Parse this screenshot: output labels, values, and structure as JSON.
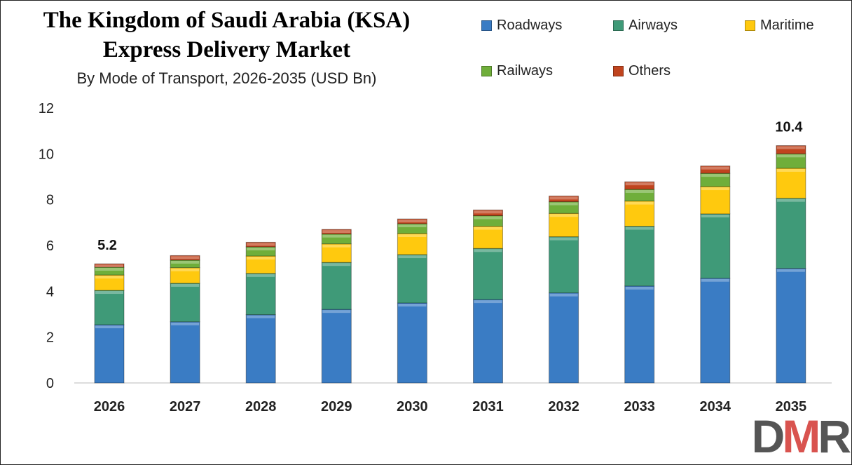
{
  "chart_data": {
    "type": "bar",
    "stacked": true,
    "title": "The Kingdom of Saudi Arabia (KSA) Express Delivery Market",
    "title_lines": [
      "The Kingdom of Saudi Arabia (KSA)",
      "Express Delivery Market"
    ],
    "subtitle": "By Mode of Transport, 2026-2035 (USD Bn)",
    "xlabel": "",
    "ylabel": "",
    "ylim": [
      0,
      12
    ],
    "yticks": [
      0,
      2,
      4,
      6,
      8,
      10,
      12
    ],
    "grid": false,
    "legend_position": "top-right",
    "categories": [
      "2026",
      "2027",
      "2028",
      "2029",
      "2030",
      "2031",
      "2032",
      "2033",
      "2034",
      "2035"
    ],
    "series": [
      {
        "name": "Roadways",
        "color": "#3a7cc4",
        "values": [
          2.54,
          2.67,
          2.98,
          3.21,
          3.49,
          3.64,
          3.93,
          4.23,
          4.57,
          5.0
        ]
      },
      {
        "name": "Airways",
        "color": "#3f9a78",
        "values": [
          1.5,
          1.68,
          1.8,
          2.05,
          2.11,
          2.23,
          2.45,
          2.61,
          2.81,
          3.06
        ]
      },
      {
        "name": "Maritime",
        "color": "#ffc90e",
        "values": [
          0.67,
          0.68,
          0.76,
          0.81,
          0.92,
          0.97,
          1.02,
          1.1,
          1.19,
          1.31
        ]
      },
      {
        "name": "Railways",
        "color": "#6fae3a",
        "values": [
          0.34,
          0.33,
          0.4,
          0.43,
          0.43,
          0.46,
          0.51,
          0.51,
          0.58,
          0.63
        ]
      },
      {
        "name": "Others",
        "color": "#c0441e",
        "values": [
          0.15,
          0.2,
          0.2,
          0.2,
          0.21,
          0.25,
          0.25,
          0.33,
          0.32,
          0.36
        ]
      }
    ],
    "annotations": [
      {
        "category": "2026",
        "text": "5.2"
      },
      {
        "category": "2035",
        "text": "10.4"
      }
    ]
  },
  "logo": {
    "text": "DMR"
  }
}
